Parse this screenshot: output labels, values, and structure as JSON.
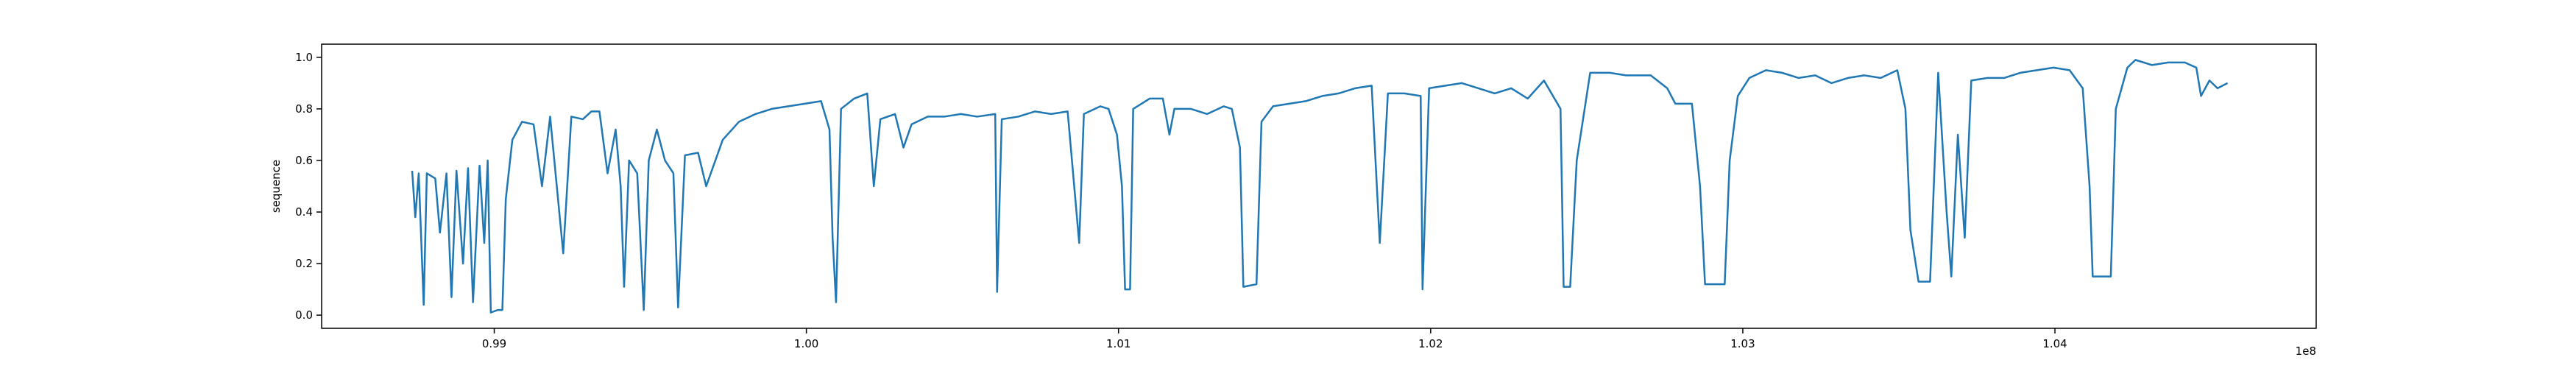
{
  "chart_data": {
    "type": "line",
    "y_label": "sequence",
    "x_offset_label": "1e8",
    "color": "#1f77b4",
    "xlim": [
      0.98447,
      1.04837
    ],
    "xticks": [
      0.99,
      {
        "value": 1.0,
        "label": "1.00"
      },
      1.01,
      1.02,
      1.03,
      1.04
    ],
    "ylim": [
      -0.051,
      1.051
    ],
    "yticks": [
      {
        "value": 0,
        "label": "0.0"
      },
      0.2,
      0.4,
      0.6,
      0.8,
      {
        "value": 1,
        "label": "1.0"
      }
    ],
    "grid": false,
    "x": [
      0.98737,
      0.98747,
      0.98758,
      0.98774,
      0.98784,
      0.98811,
      0.98826,
      0.98847,
      0.98863,
      0.98879,
      0.989,
      0.98916,
      0.98932,
      0.98953,
      0.98968,
      0.98979,
      0.98989,
      0.99011,
      0.99026,
      0.99037,
      0.99058,
      0.99089,
      0.99126,
      0.99153,
      0.99179,
      0.99221,
      0.99247,
      0.99284,
      0.99311,
      0.99337,
      0.99363,
      0.99389,
      0.99405,
      0.99416,
      0.99432,
      0.99458,
      0.99479,
      0.99495,
      0.99521,
      0.99547,
      0.99574,
      0.99589,
      0.99611,
      0.99653,
      0.99679,
      0.99732,
      0.99784,
      0.99837,
      0.99889,
      0.99942,
      0.99995,
      1.00047,
      1.00074,
      1.00084,
      1.00095,
      1.00111,
      1.00153,
      1.00195,
      1.00216,
      1.00237,
      1.00284,
      1.00311,
      1.00337,
      1.00389,
      1.00442,
      1.00495,
      1.00547,
      1.00605,
      1.00611,
      1.00626,
      1.00679,
      1.00732,
      1.00784,
      1.00837,
      1.00874,
      1.00889,
      1.00942,
      1.00968,
      1.00995,
      1.01011,
      1.01021,
      1.01037,
      1.01047,
      1.011,
      1.01142,
      1.01163,
      1.01179,
      1.01232,
      1.01284,
      1.01337,
      1.01363,
      1.01389,
      1.014,
      1.01442,
      1.01458,
      1.01495,
      1.01547,
      1.016,
      1.01653,
      1.01705,
      1.01758,
      1.01811,
      1.01837,
      1.01863,
      1.01916,
      1.01968,
      1.01974,
      1.01995,
      1.02047,
      1.021,
      1.02153,
      1.02205,
      1.02258,
      1.02311,
      1.02363,
      1.02416,
      1.02426,
      1.02447,
      1.02468,
      1.02511,
      1.02574,
      1.02626,
      1.02705,
      1.02758,
      1.02784,
      1.02837,
      1.02863,
      1.02879,
      1.02942,
      1.02958,
      1.02984,
      1.03021,
      1.03074,
      1.03126,
      1.03179,
      1.03232,
      1.03284,
      1.03337,
      1.03389,
      1.03442,
      1.03495,
      1.03521,
      1.03537,
      1.03563,
      1.036,
      1.03626,
      1.03653,
      1.03668,
      1.03689,
      1.03711,
      1.03732,
      1.03784,
      1.03837,
      1.03889,
      1.03942,
      1.03995,
      1.04047,
      1.04089,
      1.04111,
      1.04121,
      1.04179,
      1.04195,
      1.04232,
      1.04258,
      1.04311,
      1.04363,
      1.04416,
      1.04453,
      1.04468,
      1.04495,
      1.04521,
      1.04553
    ],
    "values": [
      0.56,
      0.38,
      0.55,
      0.04,
      0.55,
      0.53,
      0.32,
      0.55,
      0.07,
      0.56,
      0.2,
      0.57,
      0.05,
      0.58,
      0.28,
      0.6,
      0.01,
      0.02,
      0.02,
      0.45,
      0.68,
      0.75,
      0.74,
      0.5,
      0.77,
      0.24,
      0.77,
      0.76,
      0.79,
      0.79,
      0.55,
      0.72,
      0.5,
      0.11,
      0.6,
      0.55,
      0.02,
      0.6,
      0.72,
      0.6,
      0.55,
      0.03,
      0.62,
      0.63,
      0.5,
      0.68,
      0.75,
      0.78,
      0.8,
      0.81,
      0.82,
      0.83,
      0.72,
      0.3,
      0.05,
      0.8,
      0.84,
      0.86,
      0.5,
      0.76,
      0.78,
      0.65,
      0.74,
      0.77,
      0.77,
      0.78,
      0.77,
      0.78,
      0.09,
      0.76,
      0.77,
      0.79,
      0.78,
      0.79,
      0.28,
      0.78,
      0.81,
      0.8,
      0.7,
      0.5,
      0.1,
      0.1,
      0.8,
      0.84,
      0.84,
      0.7,
      0.8,
      0.8,
      0.78,
      0.81,
      0.8,
      0.65,
      0.11,
      0.12,
      0.75,
      0.81,
      0.82,
      0.83,
      0.85,
      0.86,
      0.88,
      0.89,
      0.28,
      0.86,
      0.86,
      0.85,
      0.1,
      0.88,
      0.89,
      0.9,
      0.88,
      0.86,
      0.88,
      0.84,
      0.91,
      0.8,
      0.11,
      0.11,
      0.6,
      0.94,
      0.94,
      0.93,
      0.93,
      0.88,
      0.82,
      0.82,
      0.5,
      0.12,
      0.12,
      0.6,
      0.85,
      0.92,
      0.95,
      0.94,
      0.92,
      0.93,
      0.9,
      0.92,
      0.93,
      0.92,
      0.95,
      0.8,
      0.33,
      0.13,
      0.13,
      0.94,
      0.4,
      0.15,
      0.7,
      0.3,
      0.91,
      0.92,
      0.92,
      0.94,
      0.95,
      0.96,
      0.95,
      0.88,
      0.5,
      0.15,
      0.15,
      0.8,
      0.96,
      0.99,
      0.97,
      0.98,
      0.98,
      0.96,
      0.85,
      0.91,
      0.88,
      0.9
    ]
  }
}
